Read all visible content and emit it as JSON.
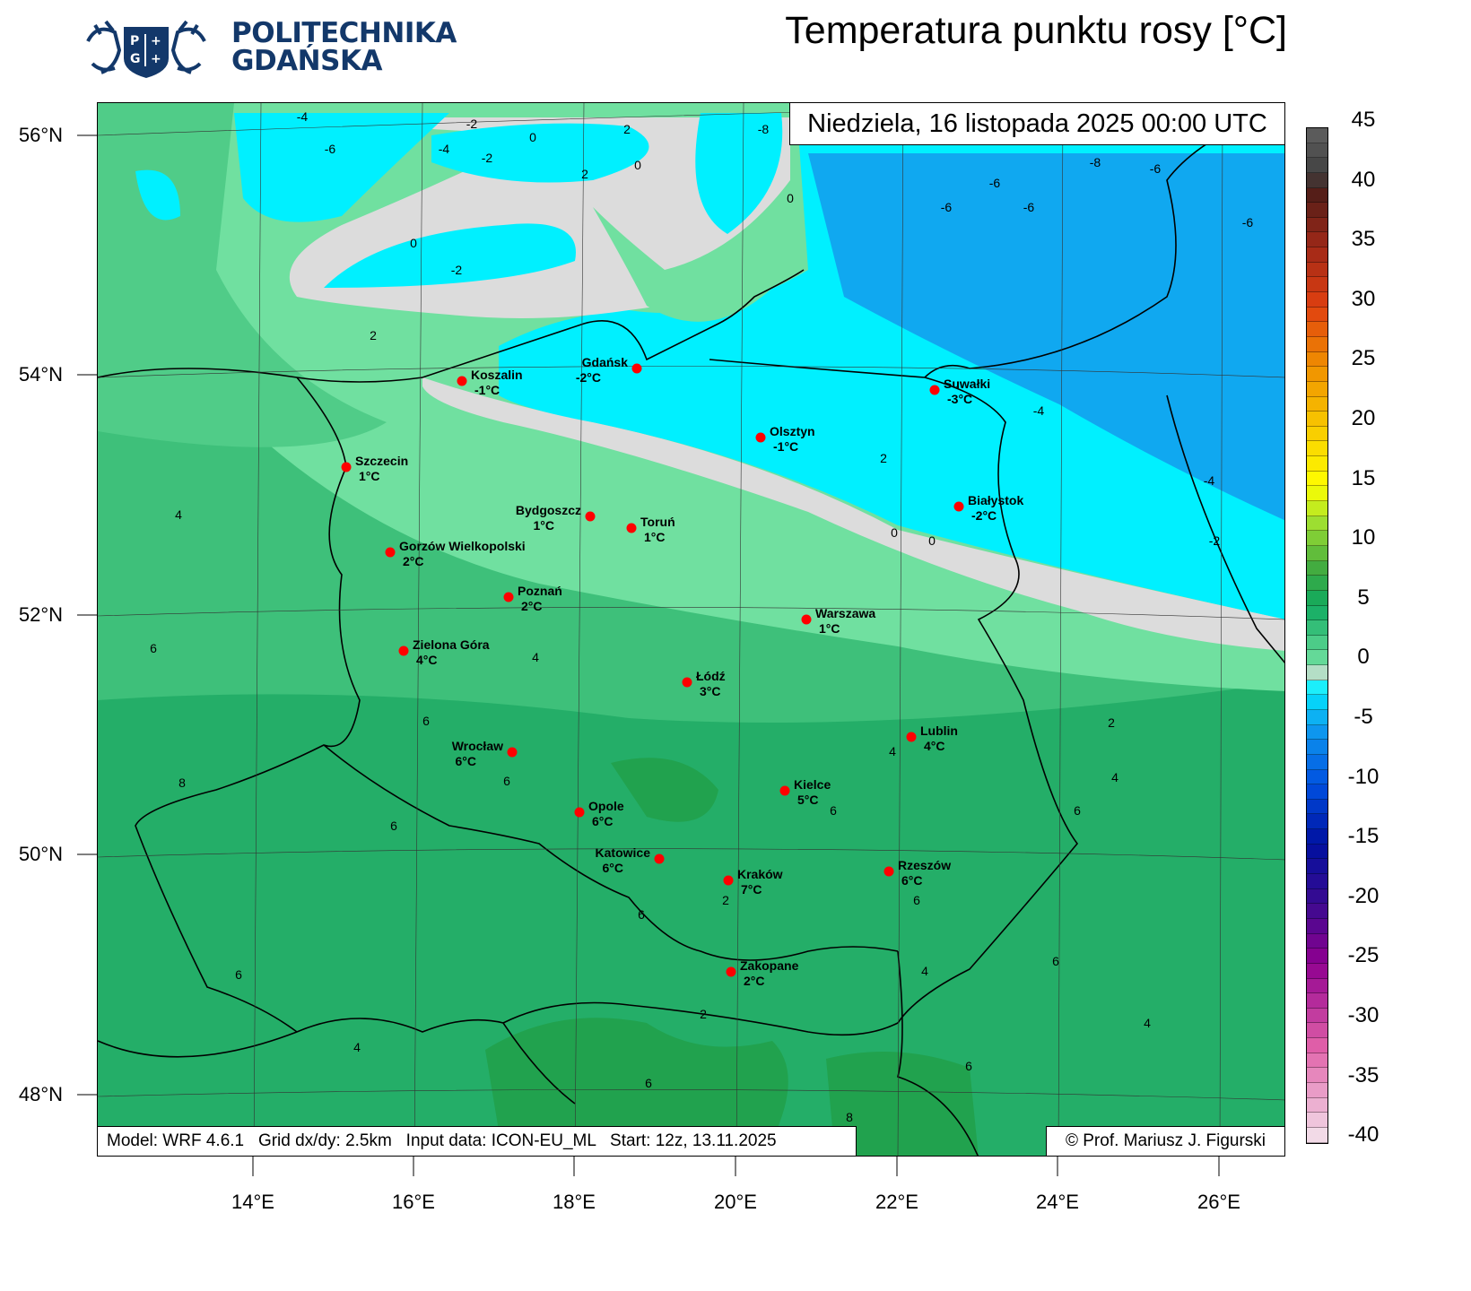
{
  "logo": {
    "line1": "POLITECHNIKA",
    "line2": "GDAŃSKA",
    "color": "#13386a"
  },
  "title": "Temperatura punktu rosy [°C]",
  "date_label": "Niedziela, 16 listopada 2025 00:00 UTC",
  "footer": {
    "model": "Model: WRF 4.6.1   Grid dx/dy: 2.5km   Input data: ICON-EU_ML   Start: 12z, 13.11.2025",
    "credit": "© Prof. Mariusz J. Figurski"
  },
  "lat_labels": [
    "56°N",
    "54°N",
    "52°N",
    "50°N",
    "48°N"
  ],
  "lon_labels": [
    "14°E",
    "16°E",
    "18°E",
    "20°E",
    "22°E",
    "24°E",
    "26°E"
  ],
  "colorbar": {
    "unit": "°C",
    "labels": [
      "45",
      "40",
      "35",
      "30",
      "25",
      "20",
      "15",
      "10",
      "5",
      "0",
      "-5",
      "-10",
      "-15",
      "-20",
      "-25",
      "-30",
      "-35",
      "-40"
    ],
    "range": [
      -40,
      45
    ],
    "palette": [
      {
        "value": -40,
        "color": "#f4e4ec"
      },
      {
        "value": -32,
        "color": "#e060a8"
      },
      {
        "value": -25,
        "color": "#900090"
      },
      {
        "value": -20,
        "color": "#3a0a90"
      },
      {
        "value": -15,
        "color": "#0010a0"
      },
      {
        "value": -10,
        "color": "#0050e0"
      },
      {
        "value": -5,
        "color": "#10a0f0"
      },
      {
        "value": -2,
        "color": "#00f0ff"
      },
      {
        "value": -1,
        "color": "#dcdcdc"
      },
      {
        "value": 0,
        "color": "#70e0a0"
      },
      {
        "value": 5,
        "color": "#10aa60"
      },
      {
        "value": 8,
        "color": "#40aa40"
      },
      {
        "value": 12,
        "color": "#a0e030"
      },
      {
        "value": 15,
        "color": "#ffff00"
      },
      {
        "value": 20,
        "color": "#f8c800"
      },
      {
        "value": 25,
        "color": "#f09000"
      },
      {
        "value": 30,
        "color": "#e04010"
      },
      {
        "value": 35,
        "color": "#a02818"
      },
      {
        "value": 40,
        "color": "#4a1c18"
      },
      {
        "value": 41,
        "color": "#404040"
      },
      {
        "value": 45,
        "color": "#606060"
      }
    ]
  },
  "cities": [
    {
      "name": "Koszalin",
      "temp": "-1°C"
    },
    {
      "name": "Gdańsk",
      "temp": "-2°C"
    },
    {
      "name": "Suwałki",
      "temp": "-3°C"
    },
    {
      "name": "Olsztyn",
      "temp": "-1°C"
    },
    {
      "name": "Szczecin",
      "temp": "1°C"
    },
    {
      "name": "Białystok",
      "temp": "-2°C"
    },
    {
      "name": "Bydgoszcz",
      "temp": "1°C"
    },
    {
      "name": "Toruń",
      "temp": "1°C"
    },
    {
      "name": "Gorzów Wielkopolski",
      "temp": "2°C"
    },
    {
      "name": "Poznań",
      "temp": "2°C"
    },
    {
      "name": "Warszawa",
      "temp": "1°C"
    },
    {
      "name": "Zielona Góra",
      "temp": "4°C"
    },
    {
      "name": "Łódź",
      "temp": "3°C"
    },
    {
      "name": "Lublin",
      "temp": "4°C"
    },
    {
      "name": "Wrocław",
      "temp": "6°C"
    },
    {
      "name": "Kielce",
      "temp": "5°C"
    },
    {
      "name": "Opole",
      "temp": "6°C"
    },
    {
      "name": "Katowice",
      "temp": "6°C"
    },
    {
      "name": "Rzeszów",
      "temp": "6°C"
    },
    {
      "name": "Kraków",
      "temp": "7°C"
    },
    {
      "name": "Zakopane",
      "temp": "2°C"
    }
  ],
  "contour_labels": [
    "-4",
    "-6",
    "-2",
    "0",
    "2",
    "-2",
    "0",
    "2",
    "-4",
    "-8",
    "-8",
    "-6",
    "-6",
    "-6",
    "-6",
    "0",
    "-2",
    "2",
    "0",
    "-6",
    "-4",
    "-4",
    "-2",
    "0",
    "0",
    "2",
    "4",
    "4",
    "6",
    "6",
    "8",
    "6",
    "6",
    "6",
    "4",
    "2",
    "4",
    "6",
    "6",
    "4",
    "6",
    "6",
    "2",
    "2",
    "4",
    "6",
    "6",
    "6",
    "4",
    "8"
  ],
  "colors": {
    "marker": "#ff0000"
  }
}
